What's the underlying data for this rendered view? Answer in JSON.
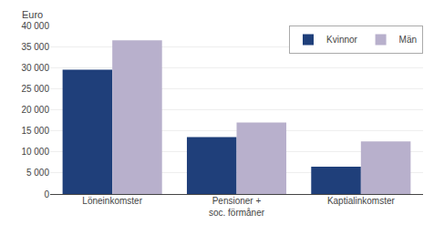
{
  "chart_data": {
    "type": "bar",
    "ylabel": "Euro",
    "categories": [
      "Löneinkomster",
      "Pensioner +\nsoc. förmåner",
      "Kaptialinkomster"
    ],
    "series": [
      {
        "name": "Kvinnor",
        "color": "#1F3F7A",
        "values": [
          29500,
          13500,
          6500
        ]
      },
      {
        "name": "Män",
        "color": "#B8B0CC",
        "values": [
          36500,
          17000,
          12500
        ]
      }
    ],
    "ylim": [
      0,
      40000
    ],
    "yticks": [
      0,
      {
        "value": 5000,
        "label": "5 000"
      },
      {
        "value": 10000,
        "label": "10 000"
      },
      {
        "value": 15000,
        "label": "15 000"
      },
      {
        "value": 20000,
        "label": "20 000"
      },
      {
        "value": 25000,
        "label": "25 000"
      },
      {
        "value": 30000,
        "label": "30 000"
      },
      {
        "value": 35000,
        "label": "35 000"
      },
      {
        "value": 40000,
        "label": "40 000"
      }
    ],
    "grid": true,
    "legend": "upper right"
  }
}
